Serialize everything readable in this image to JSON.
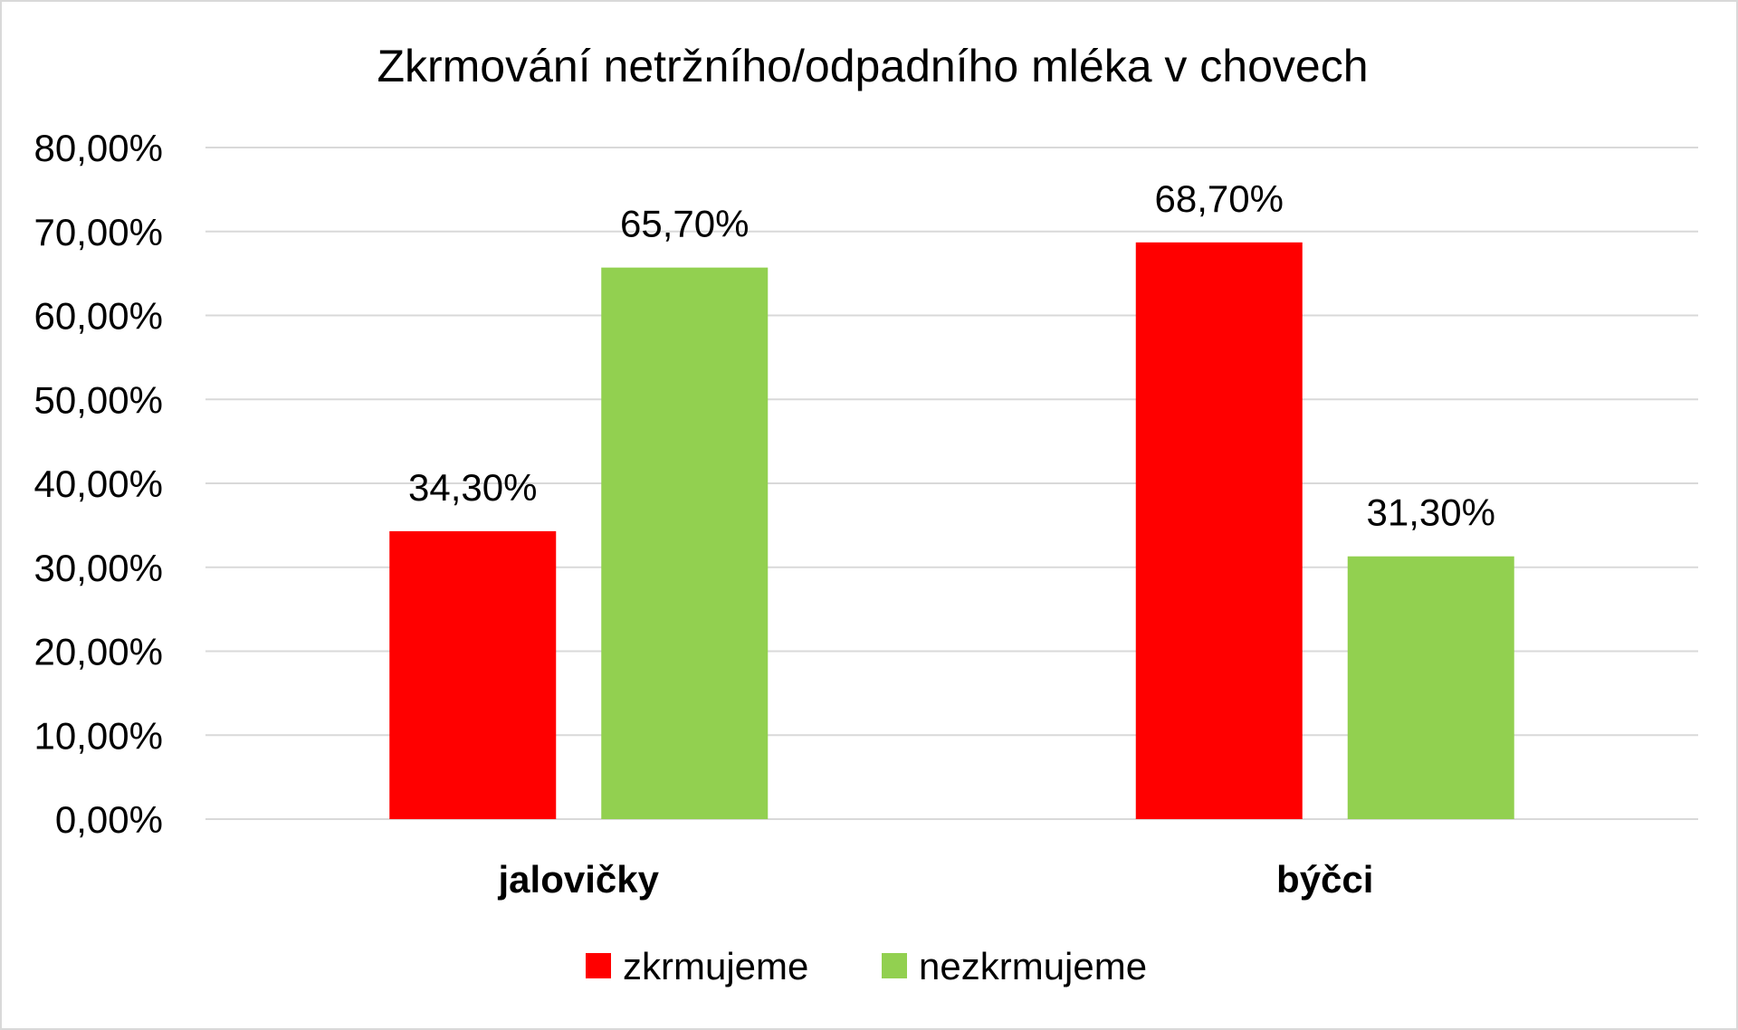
{
  "chart_data": {
    "type": "bar",
    "title": "Zkrmování netržního/odpadního mléka v chovech",
    "categories": [
      "jalovičky",
      "býčci"
    ],
    "series": [
      {
        "name": "zkrmujeme",
        "values": [
          34.3,
          68.7
        ],
        "labels": [
          "34,30%",
          "68,70%"
        ],
        "color": "#ff0000"
      },
      {
        "name": "nezkrmujeme",
        "values": [
          65.7,
          31.3
        ],
        "labels": [
          "65,70%",
          "31,30%"
        ],
        "color": "#92d050"
      }
    ],
    "ylim": [
      0,
      80
    ],
    "yticks": [
      0,
      10,
      20,
      30,
      40,
      50,
      60,
      70,
      80
    ],
    "ytick_labels": [
      "0,00%",
      "10,00%",
      "20,00%",
      "30,00%",
      "40,00%",
      "50,00%",
      "60,00%",
      "70,00%",
      "80,00%"
    ],
    "xlabel": "",
    "ylabel": "",
    "grid": true,
    "legend_position": "bottom"
  }
}
